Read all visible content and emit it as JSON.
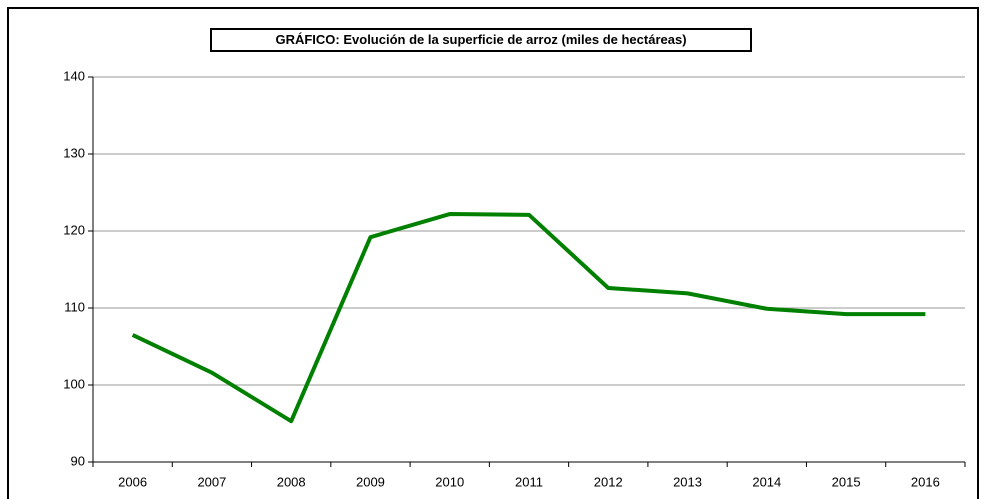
{
  "chart_data": {
    "type": "line",
    "title": "GRÁFICO: Evolución de la superficie de arroz (miles de hectáreas)",
    "categories": [
      "2006",
      "2007",
      "2008",
      "2009",
      "2010",
      "2011",
      "2012",
      "2013",
      "2014",
      "2015",
      "2016"
    ],
    "series": [
      {
        "name": "Superficie de arroz",
        "color": "#008000",
        "values": [
          106.5,
          101.6,
          95.3,
          119.2,
          122.2,
          122.1,
          112.6,
          111.9,
          109.9,
          109.2,
          109.2
        ]
      }
    ],
    "ylim": [
      90,
      140
    ],
    "yticks": [
      90,
      100,
      110,
      120,
      130,
      140
    ],
    "grid": true
  }
}
